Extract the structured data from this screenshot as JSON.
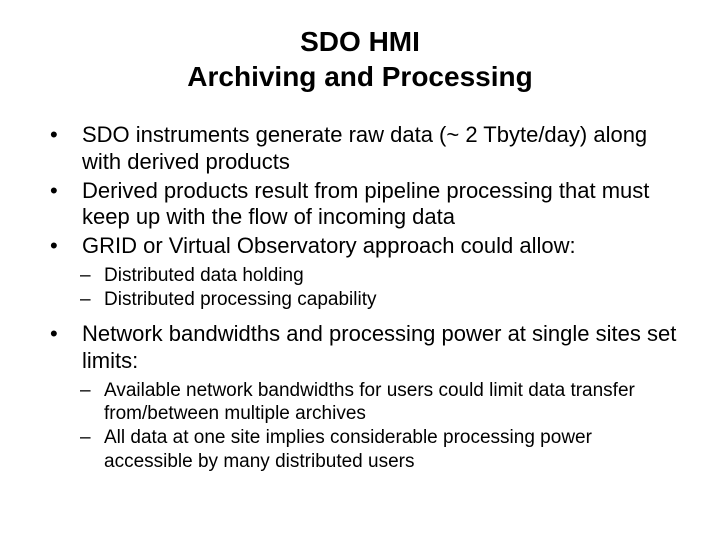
{
  "title": {
    "line1": "SDO HMI",
    "line2": "Archiving and Processing"
  },
  "bullets": [
    {
      "text": "SDO instruments generate raw data (~ 2 Tbyte/day) along with derived products",
      "subs": []
    },
    {
      "text": "Derived products result from pipeline processing that must keep up with the flow of incoming data",
      "subs": []
    },
    {
      "text": "GRID or Virtual Observatory approach could allow:",
      "subs": [
        "Distributed data holding",
        "Distributed processing capability"
      ]
    },
    {
      "text": "Network bandwidths and processing power at single sites set limits:",
      "subs": [
        "Available network bandwidths for users could limit data transfer from/between multiple archives",
        "All data at one site implies considerable processing power accessible by many distributed users"
      ]
    }
  ],
  "colors": {
    "background": "#ffffff",
    "text": "#000000"
  },
  "fonts": {
    "title_size": 28,
    "bullet_size": 22,
    "sub_size": 19
  },
  "markers": {
    "bullet": "•",
    "sub": "–"
  }
}
